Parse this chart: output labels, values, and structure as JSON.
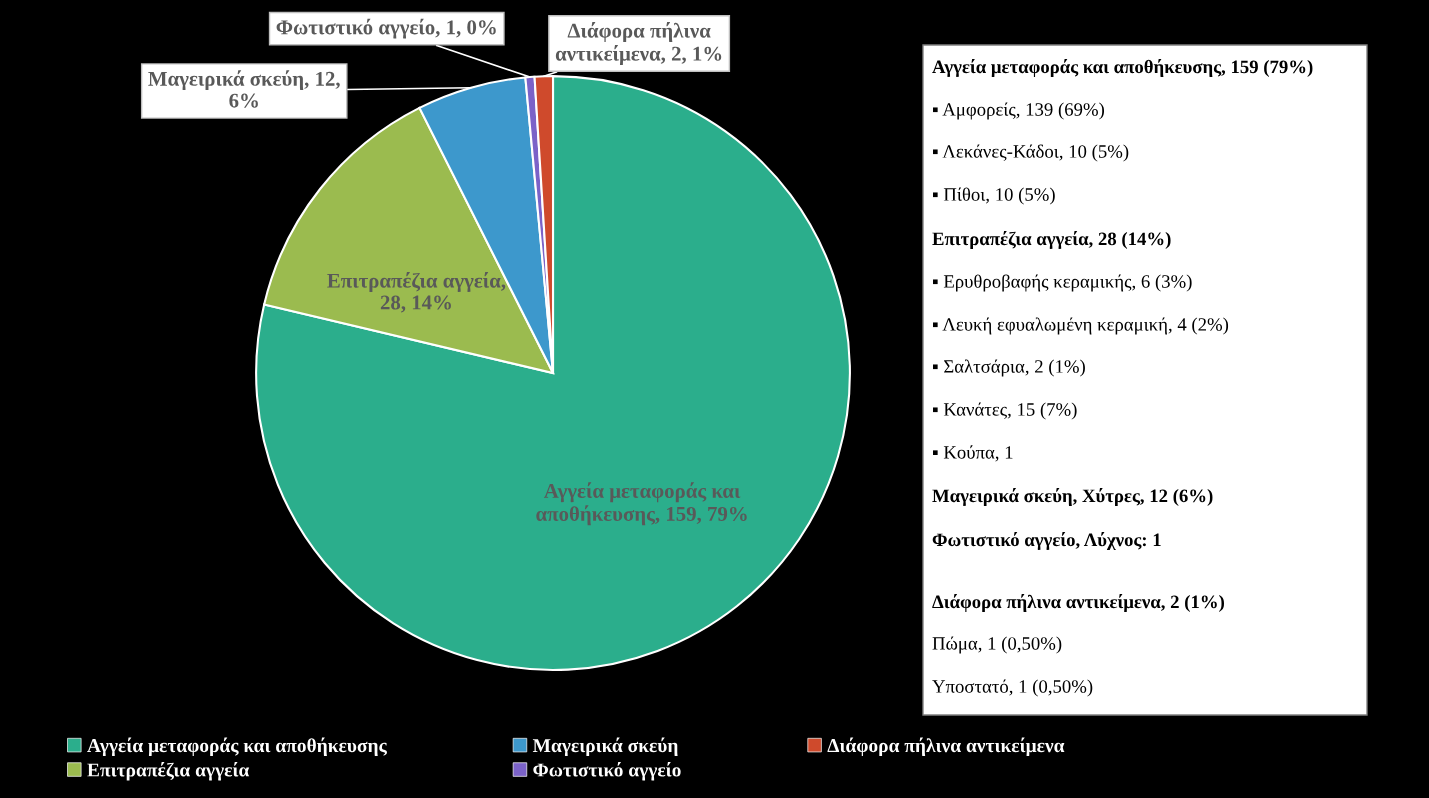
{
  "chart_data": {
    "type": "pie",
    "categories": [
      "Αγγεία μεταφοράς και αποθήκευσης",
      "Επιτραπέζια αγγεία",
      "Μαγειρικά σκεύη",
      "Φωτιστικό αγγείο",
      "Διάφορα πήλινα αντικείμενα"
    ],
    "values": [
      159,
      28,
      12,
      1,
      2
    ],
    "colors": [
      "#2bae8c",
      "#9bbb4f",
      "#3d98cc",
      "#7b62c8",
      "#cf4a2c"
    ],
    "value_labels": [
      "Αγγεία μεταφοράς και\nαποθήκευσης, 159, 79%",
      "Επιτραπέζια αγγεία,\n28, 14%",
      "Μαγειρικά σκεύη, 12,\n6%",
      "Φωτιστικό αγγείο, 1, 0%",
      "Διάφορα πήλινα\nαντικείμενα, 2, 1%"
    ],
    "legend": "bottom",
    "annotations": [
      "Αγγεία μεταφοράς και αποθήκευσης, 159 (79%)",
      "▪ Αμφορείς, 139 (69%)",
      "▪ Λεκάνες-Κάδοι, 10 (5%)",
      "▪ Πίθοι, 10 (5%)",
      "Επιτραπέζια αγγεία, 28 (14%)",
      "▪ Ερυθροβαφής κεραμικής, 6 (3%)",
      "▪ Λευκή εφυαλωμένη κεραμική, 4 (2%)",
      "▪ Σαλτσάρια, 2 (1%)",
      "▪ Κανάτες, 15 (7%)",
      "▪ Κούπα, 1",
      "Μαγειρικά σκεύη, Χύτρες, 12 (6%)",
      "Φωτιστικό αγγείο, Λύχνος: 1",
      "Διάφορα πήλινα αντικείμενα, 2 (1%)",
      "Πώμα, 1 (0,50%)",
      "Υποστατό, 1 (0,50%)"
    ]
  }
}
